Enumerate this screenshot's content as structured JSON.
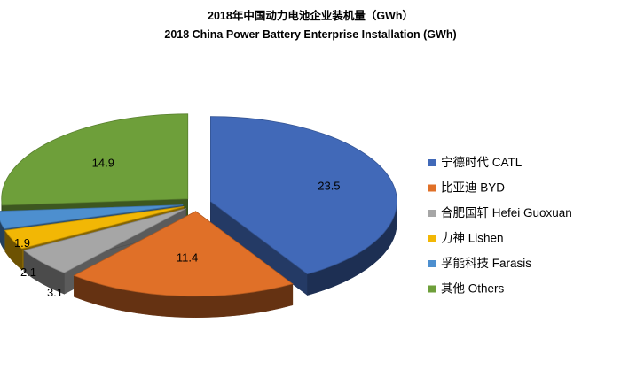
{
  "chart_data": {
    "type": "pie",
    "style": "exploded-3d",
    "title": "2018年中国动力电池企业装机量（GWh）",
    "subtitle": "2018 China Power Battery Enterprise Installation (GWh)",
    "unit": "GWh",
    "legend_position": "right",
    "slices": [
      {
        "label": "宁德时代 CATL",
        "value": 23.5,
        "value_text": "23.5",
        "color": "#4169b8"
      },
      {
        "label": "比亚迪 BYD",
        "value": 11.4,
        "value_text": "11.4",
        "color": "#e07028"
      },
      {
        "label": "合肥国轩 Hefei Guoxuan",
        "value": 3.1,
        "value_text": "3.1",
        "color": "#a6a6a6"
      },
      {
        "label": "力神 Lishen",
        "value": 2.1,
        "value_text": "2.1",
        "color": "#f2b705"
      },
      {
        "label": "孚能科技 Farasis",
        "value": 1.9,
        "value_text": "1.9",
        "color": "#4d8fcf"
      },
      {
        "label": "其他 Others",
        "value": 14.9,
        "value_text": "14.9",
        "color": "#6e9f3a"
      }
    ]
  }
}
